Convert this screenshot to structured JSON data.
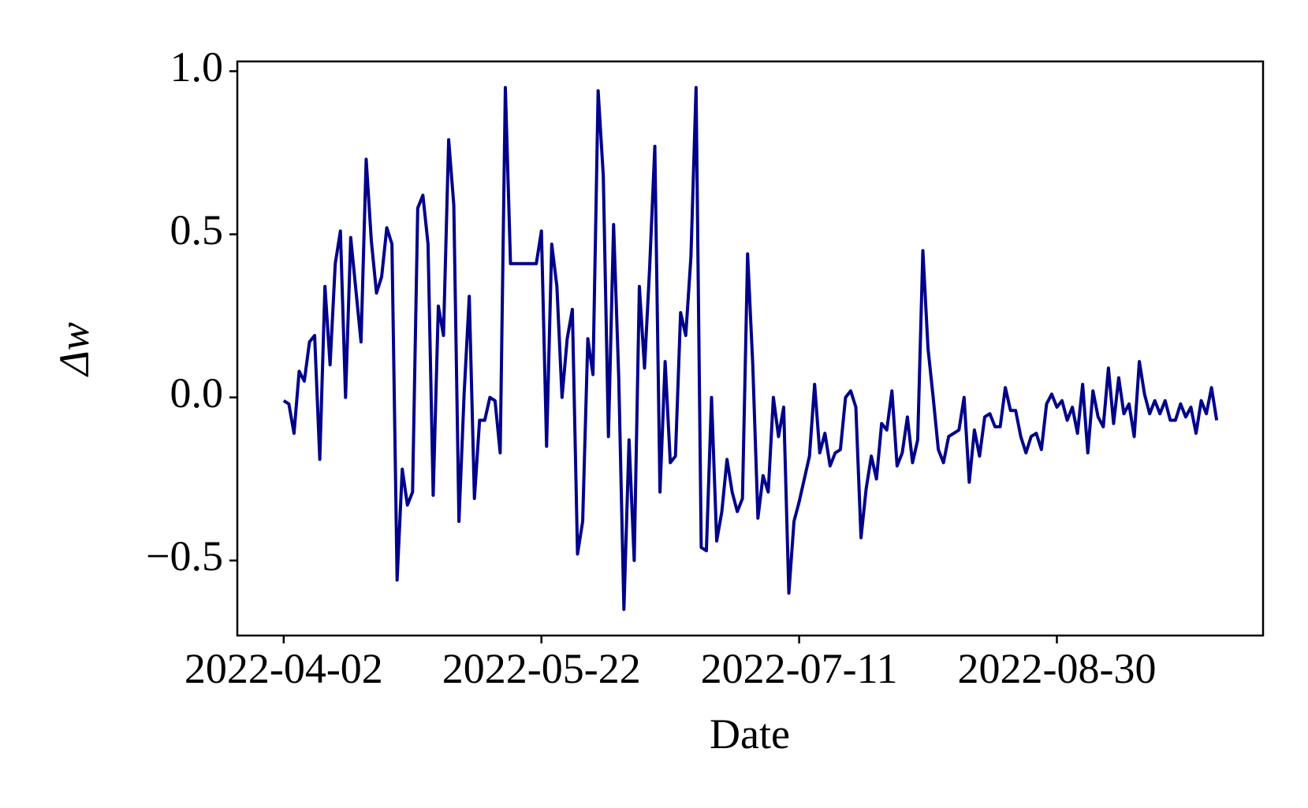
{
  "chart_data": {
    "type": "line",
    "xlabel": "Date",
    "ylabel": "Δw",
    "color": "#00008b",
    "x": [
      "2022-04-02",
      "2022-04-03",
      "2022-04-04",
      "2022-04-05",
      "2022-04-06",
      "2022-04-07",
      "2022-04-08",
      "2022-04-09",
      "2022-04-10",
      "2022-04-11",
      "2022-04-12",
      "2022-04-13",
      "2022-04-14",
      "2022-04-15",
      "2022-04-16",
      "2022-04-17",
      "2022-04-18",
      "2022-04-19",
      "2022-04-20",
      "2022-04-21",
      "2022-04-22",
      "2022-04-23",
      "2022-04-24",
      "2022-04-25",
      "2022-04-26",
      "2022-04-27",
      "2022-04-28",
      "2022-04-29",
      "2022-04-30",
      "2022-05-01",
      "2022-05-02",
      "2022-05-03",
      "2022-05-04",
      "2022-05-05",
      "2022-05-06",
      "2022-05-07",
      "2022-05-08",
      "2022-05-09",
      "2022-05-10",
      "2022-05-11",
      "2022-05-12",
      "2022-05-13",
      "2022-05-14",
      "2022-05-15",
      "2022-05-16",
      "2022-05-17",
      "2022-05-18",
      "2022-05-19",
      "2022-05-20",
      "2022-05-21",
      "2022-05-22",
      "2022-05-23",
      "2022-05-24",
      "2022-05-25",
      "2022-05-26",
      "2022-05-27",
      "2022-05-28",
      "2022-05-29",
      "2022-05-30",
      "2022-05-31",
      "2022-06-01",
      "2022-06-02",
      "2022-06-03",
      "2022-06-04",
      "2022-06-05",
      "2022-06-06",
      "2022-06-07",
      "2022-06-08",
      "2022-06-09",
      "2022-06-10",
      "2022-06-11",
      "2022-06-12",
      "2022-06-13",
      "2022-06-14",
      "2022-06-15",
      "2022-06-16",
      "2022-06-17",
      "2022-06-18",
      "2022-06-19",
      "2022-06-20",
      "2022-06-21",
      "2022-06-22",
      "2022-06-23",
      "2022-06-24",
      "2022-06-25",
      "2022-06-26",
      "2022-06-27",
      "2022-06-28",
      "2022-06-29",
      "2022-06-30",
      "2022-07-01",
      "2022-07-02",
      "2022-07-03",
      "2022-07-04",
      "2022-07-05",
      "2022-07-06",
      "2022-07-07",
      "2022-07-08",
      "2022-07-09",
      "2022-07-10",
      "2022-07-11",
      "2022-07-12",
      "2022-07-13",
      "2022-07-14",
      "2022-07-15",
      "2022-07-16",
      "2022-07-17",
      "2022-07-18",
      "2022-07-19",
      "2022-07-20",
      "2022-07-21",
      "2022-07-22",
      "2022-07-23",
      "2022-07-24",
      "2022-07-25",
      "2022-07-26",
      "2022-07-27",
      "2022-07-28",
      "2022-07-29",
      "2022-07-30",
      "2022-07-31",
      "2022-08-01",
      "2022-08-02",
      "2022-08-03",
      "2022-08-04",
      "2022-08-05",
      "2022-08-06",
      "2022-08-07",
      "2022-08-08",
      "2022-08-09",
      "2022-08-10",
      "2022-08-11",
      "2022-08-12",
      "2022-08-13",
      "2022-08-14",
      "2022-08-15",
      "2022-08-16",
      "2022-08-17",
      "2022-08-18",
      "2022-08-19",
      "2022-08-20",
      "2022-08-21",
      "2022-08-22",
      "2022-08-23",
      "2022-08-24",
      "2022-08-25",
      "2022-08-26",
      "2022-08-27",
      "2022-08-28",
      "2022-08-29",
      "2022-08-30",
      "2022-08-31",
      "2022-09-01",
      "2022-09-02",
      "2022-09-03",
      "2022-09-04",
      "2022-09-05",
      "2022-09-06",
      "2022-09-07",
      "2022-09-08",
      "2022-09-09",
      "2022-09-10",
      "2022-09-11",
      "2022-09-12",
      "2022-09-13",
      "2022-09-14",
      "2022-09-15",
      "2022-09-16",
      "2022-09-17",
      "2022-09-18",
      "2022-09-19",
      "2022-09-20",
      "2022-09-21",
      "2022-09-22",
      "2022-09-23",
      "2022-09-24",
      "2022-09-25",
      "2022-09-26",
      "2022-09-27",
      "2022-09-28",
      "2022-09-29",
      "2022-09-30"
    ],
    "values": [
      -0.01,
      -0.02,
      -0.11,
      0.08,
      0.05,
      0.17,
      0.19,
      -0.19,
      0.34,
      0.1,
      0.41,
      0.51,
      0.0,
      0.49,
      0.33,
      0.17,
      0.73,
      0.48,
      0.32,
      0.37,
      0.52,
      0.47,
      -0.56,
      -0.22,
      -0.33,
      -0.29,
      0.58,
      0.62,
      0.47,
      -0.3,
      0.28,
      0.19,
      0.79,
      0.59,
      -0.38,
      0.01,
      0.31,
      -0.31,
      -0.07,
      -0.07,
      0.0,
      -0.01,
      -0.17,
      0.95,
      0.41,
      0.41,
      0.41,
      0.41,
      0.41,
      0.41,
      0.51,
      -0.15,
      0.47,
      0.34,
      0.0,
      0.18,
      0.27,
      -0.48,
      -0.38,
      0.18,
      0.07,
      0.94,
      0.68,
      -0.12,
      0.53,
      0.06,
      -0.65,
      -0.13,
      -0.5,
      0.34,
      0.09,
      0.4,
      0.77,
      -0.29,
      0.11,
      -0.2,
      -0.18,
      0.26,
      0.19,
      0.43,
      0.95,
      -0.46,
      -0.47,
      0.0,
      -0.44,
      -0.35,
      -0.19,
      -0.29,
      -0.35,
      -0.31,
      0.44,
      0.1,
      -0.37,
      -0.24,
      -0.29,
      0.0,
      -0.12,
      -0.03,
      -0.6,
      -0.38,
      -0.32,
      -0.25,
      -0.18,
      0.04,
      -0.17,
      -0.11,
      -0.21,
      -0.17,
      -0.16,
      0.0,
      0.02,
      -0.03,
      -0.43,
      -0.28,
      -0.18,
      -0.25,
      -0.08,
      -0.1,
      0.02,
      -0.21,
      -0.17,
      -0.06,
      -0.2,
      -0.13,
      0.45,
      0.15,
      0.0,
      -0.16,
      -0.2,
      -0.12,
      -0.11,
      -0.1,
      0.0,
      -0.26,
      -0.1,
      -0.18,
      -0.06,
      -0.05,
      -0.09,
      -0.09,
      0.03,
      -0.04,
      -0.04,
      -0.12,
      -0.17,
      -0.12,
      -0.11,
      -0.16,
      -0.02,
      0.01,
      -0.03,
      -0.01,
      -0.07,
      -0.03,
      -0.11,
      0.04,
      -0.17,
      0.02,
      -0.06,
      -0.09,
      0.09,
      -0.08,
      0.06,
      -0.05,
      -0.02,
      -0.12,
      0.11,
      0.01,
      -0.05,
      -0.01,
      -0.05,
      -0.01,
      -0.07,
      -0.07,
      -0.02,
      -0.06,
      -0.03,
      -0.11,
      -0.01,
      -0.05,
      0.03,
      -0.07
    ],
    "xlim": [
      "2022-03-24",
      "2022-10-09"
    ],
    "xticks": [
      "2022-04-02",
      "2022-05-22",
      "2022-07-11",
      "2022-08-30"
    ],
    "ylim": [
      -0.73,
      1.03
    ],
    "yticks": [
      {
        "value": -0.5,
        "label": "−0.5"
      },
      {
        "value": 0,
        "label": "0.0"
      },
      {
        "value": 0.5,
        "label": "0.5"
      },
      {
        "value": 1,
        "label": "1.0"
      }
    ]
  }
}
